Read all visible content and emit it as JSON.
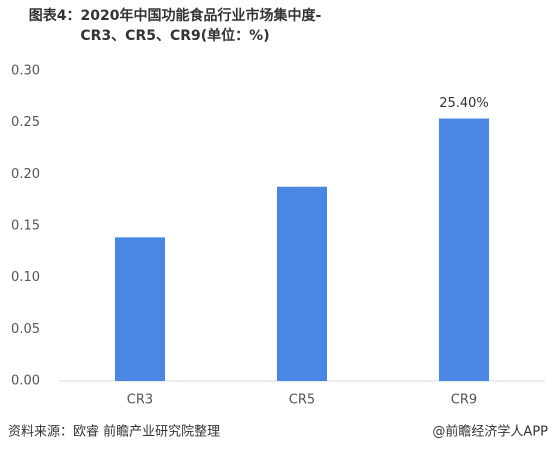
{
  "chart_data": {
    "type": "bar",
    "title": "图表4：2020年中国功能食品行业市场集中度-CR3、CR5、CR9(单位：%)",
    "categories": [
      "CR3",
      "CR5",
      "CR9"
    ],
    "values": [
      0.139,
      0.188,
      0.254
    ],
    "value_labels": [
      null,
      null,
      "25.40%"
    ],
    "color": "#4a87e3",
    "ylim": [
      0,
      0.3
    ],
    "yticks": [
      {
        "value": 0,
        "label": "0.00"
      },
      {
        "value": 0.05,
        "label": "0.05"
      },
      {
        "value": 0.1,
        "label": "0.10"
      },
      {
        "value": 0.15,
        "label": "0.15"
      },
      {
        "value": 0.2,
        "label": "0.20"
      },
      {
        "value": 0.25,
        "label": "0.25"
      },
      {
        "value": 0.3,
        "label": "0.30"
      }
    ],
    "grid": false,
    "source": "资料来源：欧睿 前瞻产业研究院整理",
    "credit": "@前瞻经济学人APP"
  }
}
